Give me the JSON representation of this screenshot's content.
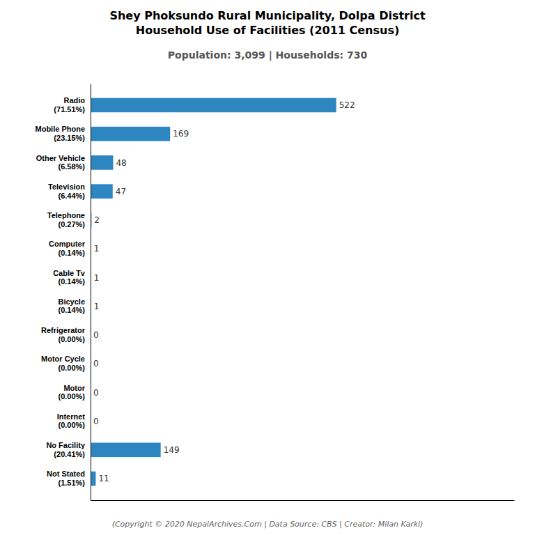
{
  "chart_data": {
    "type": "bar",
    "orientation": "horizontal",
    "title": "Shey Phoksundo Rural Municipality, Dolpa District\nHousehold Use of Facilities (2011 Census)",
    "subtitle": "Population: 3,099 | Households: 730",
    "annotations": [
      "(Copyright © 2020 NepalArchives.Com | Data Source: CBS | Creator: Milan Karki)"
    ],
    "categories": [
      "Not Stated\n(1.51%)",
      "No Facility\n(20.41%)",
      "Internet\n(0.00%)",
      "Motor\n(0.00%)",
      "Motor Cycle\n(0.00%)",
      "Refrigerator\n(0.00%)",
      "Bicycle\n(0.14%)",
      "Cable Tv\n(0.14%)",
      "Computer\n(0.14%)",
      "Telephone\n(0.27%)",
      "Television\n(6.44%)",
      "Other Vehicle\n(6.58%)",
      "Mobile Phone\n(23.15%)",
      "Radio\n(71.51%)"
    ],
    "values": [
      11,
      149,
      0,
      0,
      0,
      0,
      1,
      1,
      1,
      2,
      47,
      48,
      169,
      522
    ],
    "color": "#2e86c1",
    "xlim": [
      0,
      900
    ],
    "data_labels": true,
    "tick_labels": "y",
    "grid": false
  }
}
